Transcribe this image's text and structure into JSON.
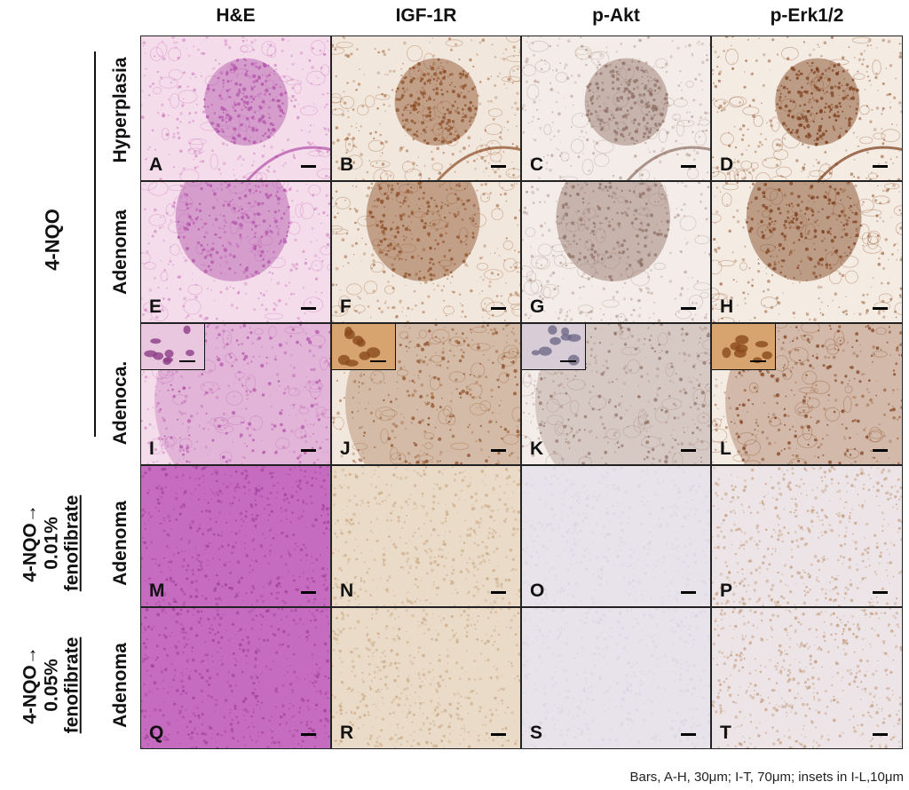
{
  "columns": [
    "H&E",
    "IGF-1R",
    "p-Akt",
    "p-Erk1/2"
  ],
  "group_labels": {
    "nqo": "4-NQO",
    "feno01": [
      "4-NQO→",
      "0.01%",
      "fenofibrate"
    ],
    "feno05": [
      "4-NQO→",
      "0.05%",
      "fenofibrate"
    ]
  },
  "row_labels": [
    "Hyperplasia",
    "Adenoma",
    "Adenoca.",
    "Adenoma",
    "Adenoma"
  ],
  "panel_letters": [
    "A",
    "B",
    "C",
    "D",
    "E",
    "F",
    "G",
    "H",
    "I",
    "J",
    "K",
    "L",
    "M",
    "N",
    "O",
    "P",
    "Q",
    "R",
    "S",
    "T"
  ],
  "colors": {
    "he_light": "#f4dcea",
    "he_tissue": "#c969b9",
    "he_dense": "#b04fa8",
    "igf_light": "#f1e7dc",
    "igf_tissue": "#9c5a2e",
    "akt_tissue": "#a7897b",
    "erk_tissue": "#8c4a22",
    "brown_faint": "#dcc2a3",
    "grey_faint": "#d9d4de"
  },
  "caption": "Bars, A-H, 30μm; I-T, 70μm; insets in I-L,10μm"
}
